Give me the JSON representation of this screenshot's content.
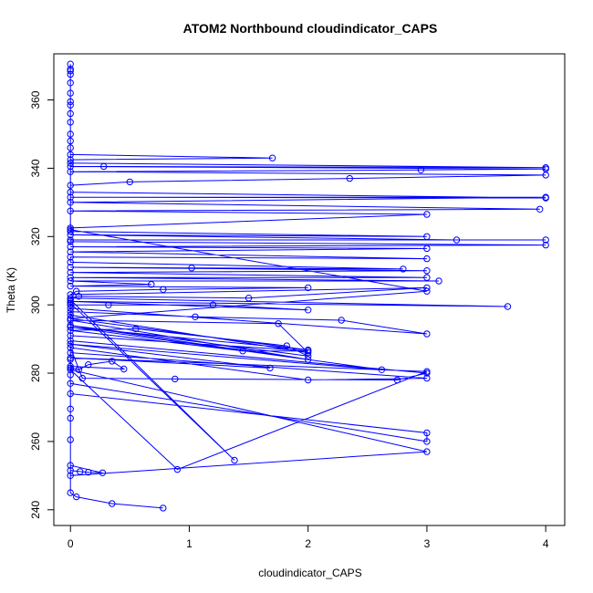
{
  "chart_data": {
    "type": "line",
    "title": "ATOM2 Northbound cloudindicator_CAPS",
    "xlabel": "cloudindicator_CAPS",
    "ylabel": "Theta (K)",
    "xlim": [
      -0.14,
      4.16
    ],
    "ylim": [
      235.4,
      373.5
    ],
    "x_ticks": [
      0,
      1,
      2,
      3,
      4
    ],
    "y_ticks": [
      240,
      260,
      280,
      300,
      320,
      340,
      360
    ],
    "grid": false,
    "legend": "none",
    "line_color": "#0000ff",
    "marker": "open-circle",
    "series": [
      {
        "values": [
          [
            0.78,
            240.5
          ],
          [
            0.35,
            241.8
          ],
          [
            0.05,
            243.8
          ],
          [
            0.0,
            245.0
          ],
          [
            0.0,
            251.5
          ],
          [
            0.08,
            251.2
          ],
          [
            0.15,
            251.0
          ],
          [
            0.27,
            250.8
          ],
          [
            0.0,
            253.0
          ],
          [
            0.0,
            260.5
          ],
          [
            0.0,
            266.8
          ],
          [
            0.0,
            269.5
          ],
          [
            0.0,
            274.0
          ],
          [
            3.0,
            262.5
          ],
          [
            3.0,
            260.0
          ],
          [
            0.0,
            277.0
          ],
          [
            0.0,
            279.5
          ],
          [
            0.0,
            281.5
          ],
          [
            0.07,
            281.0
          ],
          [
            0.15,
            282.5
          ],
          [
            0.35,
            283.5
          ],
          [
            0.45,
            281.2
          ],
          [
            0.0,
            282.0
          ],
          [
            0.0,
            284.0
          ],
          [
            0.0,
            286.0
          ],
          [
            3.0,
            278.5
          ],
          [
            2.0,
            278.0
          ],
          [
            0.0,
            287.5
          ],
          [
            0.1,
            278.5
          ],
          [
            0.88,
            278.3
          ],
          [
            2.75,
            278.0
          ],
          [
            3.0,
            280.0
          ],
          [
            0.0,
            289.5
          ],
          [
            0.0,
            291.0
          ],
          [
            2.0,
            286.5
          ],
          [
            1.45,
            286.5
          ],
          [
            0.0,
            292.5
          ],
          [
            0.55,
            293.0
          ],
          [
            1.82,
            288.0
          ],
          [
            2.0,
            285.0
          ],
          [
            0.0,
            294.0
          ],
          [
            2.0,
            284.0
          ],
          [
            0.0,
            295.5
          ],
          [
            1.75,
            294.5
          ],
          [
            2.0,
            286.0
          ],
          [
            0.0,
            297.0
          ],
          [
            0.0,
            298.0
          ],
          [
            1.05,
            296.5
          ],
          [
            2.28,
            295.5
          ],
          [
            3.0,
            291.5
          ],
          [
            0.0,
            299.0
          ],
          [
            0.0,
            300.0
          ],
          [
            0.32,
            300.0
          ],
          [
            1.2,
            300.0
          ],
          [
            2.0,
            298.5
          ],
          [
            0.0,
            301.0
          ],
          [
            3.68,
            299.5
          ],
          [
            0.0,
            302.0
          ],
          [
            0.07,
            302.5
          ],
          [
            1.5,
            302.0
          ],
          [
            3.0,
            305.0
          ],
          [
            0.0,
            303.0
          ],
          [
            0.05,
            304.0
          ],
          [
            0.78,
            304.5
          ],
          [
            2.0,
            305.0
          ],
          [
            0.0,
            305.5
          ],
          [
            0.68,
            306.0
          ],
          [
            0.0,
            307.0
          ],
          [
            3.1,
            307.0
          ],
          [
            0.0,
            308.0
          ],
          [
            3.0,
            308.0
          ],
          [
            0.0,
            309.5
          ],
          [
            3.0,
            310.0
          ],
          [
            0.0,
            311.0
          ],
          [
            1.02,
            310.8
          ],
          [
            2.8,
            310.5
          ],
          [
            0.0,
            312.5
          ],
          [
            0.0,
            314.0
          ],
          [
            3.0,
            313.5
          ],
          [
            0.0,
            315.5
          ],
          [
            3.0,
            316.5
          ],
          [
            0.0,
            317.0
          ],
          [
            4.0,
            317.5
          ],
          [
            0.0,
            318.5
          ],
          [
            0.0,
            319.0
          ],
          [
            4.0,
            319.0
          ],
          [
            3.25,
            319.0
          ],
          [
            0.0,
            320.5
          ],
          [
            3.0,
            320.0
          ],
          [
            0.0,
            321.5
          ],
          [
            0.0,
            322.5
          ],
          [
            3.0,
            326.5
          ],
          [
            0.0,
            327.5
          ],
          [
            3.95,
            328.0
          ],
          [
            0.0,
            330.0
          ],
          [
            4.0,
            331.5
          ],
          [
            0.0,
            331.5
          ],
          [
            4.0,
            331.3
          ],
          [
            0.0,
            333.0
          ],
          [
            0.0,
            335.0
          ],
          [
            0.5,
            336.0
          ],
          [
            2.35,
            337.0
          ],
          [
            4.0,
            338.0
          ],
          [
            0.0,
            339.0
          ],
          [
            2.95,
            339.5
          ],
          [
            4.0,
            339.8
          ],
          [
            0.0,
            340.5
          ],
          [
            0.28,
            340.5
          ],
          [
            4.0,
            340.2
          ],
          [
            0.0,
            341.5
          ],
          [
            0.0,
            342.5
          ],
          [
            1.7,
            343.0
          ],
          [
            0.0,
            344.0
          ],
          [
            0.0,
            346.0
          ],
          [
            0.0,
            348.0
          ],
          [
            0.0,
            350.0
          ],
          [
            0.0,
            353.5
          ],
          [
            0.0,
            356.0
          ],
          [
            0.0,
            358.5
          ],
          [
            0.0,
            359.5
          ],
          [
            0.0,
            362.0
          ],
          [
            0.0,
            365.0
          ],
          [
            0.0,
            367.5
          ],
          [
            0.0,
            368.5
          ],
          [
            0.0,
            369.0
          ],
          [
            0.0,
            370.5
          ],
          [
            0.0,
            322.0
          ],
          [
            3.0,
            304.0
          ],
          [
            0.0,
            296.0
          ],
          [
            2.0,
            286.8
          ],
          [
            0.0,
            293.5
          ],
          [
            2.62,
            281.0
          ],
          [
            0.0,
            288.5
          ],
          [
            1.68,
            281.5
          ],
          [
            0.0,
            284.5
          ],
          [
            3.0,
            280.5
          ],
          [
            0.9,
            251.8
          ],
          [
            0.0,
            281.0
          ],
          [
            3.0,
            257.0
          ],
          [
            0.0,
            250.0
          ],
          [
            0.0,
            300.5
          ],
          [
            1.38,
            254.5
          ],
          [
            0.0,
            301.5
          ]
        ]
      }
    ]
  }
}
